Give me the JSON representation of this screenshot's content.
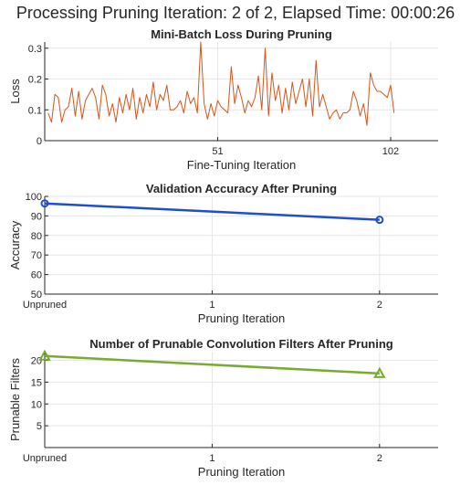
{
  "window": {
    "title": "Processing Pruning Iteration: 2 of 2, Elapsed Time: 00:00:26"
  },
  "chart_data": [
    {
      "type": "line",
      "title": "Mini-Batch Loss During Pruning",
      "xlabel": "Fine-Tuning Iteration",
      "ylabel": "Loss",
      "xlim": [
        0,
        116
      ],
      "ylim": [
        0,
        0.32
      ],
      "xticks": [
        51,
        102
      ],
      "xtick_labels": [
        "51",
        "102"
      ],
      "yticks": [
        0,
        0.1,
        0.2,
        0.3
      ],
      "ytick_labels": [
        "0",
        "0.1",
        "0.2",
        "0.3"
      ],
      "grid": true,
      "color": "#d95319",
      "series": [
        {
          "name": "Mini-Batch Loss",
          "x": [
            1,
            2,
            3,
            4,
            5,
            6,
            7,
            8,
            9,
            10,
            11,
            12,
            13,
            14,
            15,
            16,
            17,
            18,
            19,
            20,
            21,
            22,
            23,
            24,
            25,
            26,
            27,
            28,
            29,
            30,
            31,
            32,
            33,
            34,
            35,
            36,
            37,
            38,
            39,
            40,
            41,
            42,
            43,
            44,
            45,
            46,
            47,
            48,
            49,
            50,
            51,
            52,
            53,
            54,
            55,
            56,
            57,
            58,
            59,
            60,
            61,
            62,
            63,
            64,
            65,
            66,
            67,
            68,
            69,
            70,
            71,
            72,
            73,
            74,
            75,
            76,
            77,
            78,
            79,
            80,
            81,
            82,
            83,
            84,
            85,
            86,
            87,
            88,
            89,
            90,
            91,
            92,
            93,
            94,
            95,
            96,
            97,
            98,
            99,
            100,
            101,
            102,
            103
          ],
          "values": [
            0.09,
            0.06,
            0.15,
            0.14,
            0.06,
            0.1,
            0.11,
            0.17,
            0.08,
            0.16,
            0.07,
            0.13,
            0.15,
            0.17,
            0.14,
            0.07,
            0.18,
            0.15,
            0.08,
            0.12,
            0.06,
            0.14,
            0.09,
            0.15,
            0.1,
            0.17,
            0.07,
            0.14,
            0.09,
            0.15,
            0.11,
            0.19,
            0.1,
            0.15,
            0.13,
            0.18,
            0.1,
            0.1,
            0.11,
            0.13,
            0.09,
            0.16,
            0.12,
            0.14,
            0.09,
            0.32,
            0.12,
            0.07,
            0.12,
            0.08,
            0.13,
            0.11,
            0.1,
            0.09,
            0.24,
            0.12,
            0.18,
            0.14,
            0.09,
            0.13,
            0.11,
            0.14,
            0.21,
            0.1,
            0.3,
            0.08,
            0.22,
            0.13,
            0.18,
            0.09,
            0.17,
            0.1,
            0.19,
            0.12,
            0.16,
            0.2,
            0.11,
            0.2,
            0.08,
            0.26,
            0.11,
            0.15,
            0.11,
            0.07,
            0.09,
            0.1,
            0.07,
            0.09,
            0.09,
            0.1,
            0.16,
            0.13,
            0.08,
            0.12,
            0.05,
            0.22,
            0.18,
            0.16,
            0.16,
            0.15,
            0.14,
            0.18,
            0.09
          ]
        }
      ]
    },
    {
      "type": "line",
      "title": "Validation Accuracy After Pruning",
      "xlabel": "Pruning Iteration",
      "ylabel": "Accuracy",
      "xlim": [
        0,
        2.35
      ],
      "ylim": [
        50,
        100
      ],
      "xticks": [
        0,
        1,
        2
      ],
      "xtick_labels": [
        "Unpruned",
        "1",
        "2"
      ],
      "yticks": [
        50,
        60,
        70,
        80,
        90,
        100
      ],
      "ytick_labels": [
        "50",
        "60",
        "70",
        "80",
        "90",
        "100"
      ],
      "grid": true,
      "color": "#1f4fcf",
      "marker": "circle",
      "series": [
        {
          "name": "Validation Accuracy",
          "x": [
            0,
            2
          ],
          "values": [
            96.4,
            88.0
          ]
        }
      ]
    },
    {
      "type": "line",
      "title": "Number of Prunable Convolution Filters After Pruning",
      "xlabel": "Pruning Iteration",
      "ylabel": "Prunable Filters",
      "xlim": [
        0,
        2.35
      ],
      "ylim": [
        0,
        22
      ],
      "xticks": [
        0,
        1,
        2
      ],
      "xtick_labels": [
        "Unpruned",
        "1",
        "2"
      ],
      "yticks": [
        5,
        10,
        15,
        20
      ],
      "ytick_labels": [
        "5",
        "10",
        "15",
        "20"
      ],
      "grid": true,
      "color": "#77ac30",
      "marker": "triangle",
      "series": [
        {
          "name": "Prunable Filters",
          "x": [
            0,
            2
          ],
          "values": [
            21,
            17
          ]
        }
      ]
    }
  ]
}
